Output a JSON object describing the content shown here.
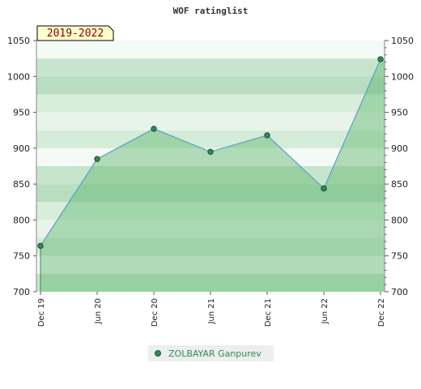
{
  "chart_data": {
    "type": "area",
    "title": "WOF ratinglist",
    "period_label": "2019-2022",
    "categories": [
      "Dec 19",
      "Jun 20",
      "Dec 20",
      "Jun 21",
      "Dec 21",
      "Jun 22",
      "Dec 22"
    ],
    "series": [
      {
        "name": "ZOLBAYAR Ganpurev",
        "values": [
          764,
          885,
          927,
          895,
          918,
          844,
          1024
        ]
      }
    ],
    "ylim": [
      700,
      1050
    ],
    "yticks": [
      700,
      750,
      800,
      850,
      900,
      950,
      1000,
      1050
    ],
    "grid": true,
    "legend": "bottom-center",
    "colors": {
      "line": "#5aa0c8",
      "point": "#2e8b57",
      "fill": "#5fb56f",
      "legend_text": "#2e8b57",
      "badge_bg": "#ffffcc",
      "badge_text": "#8b0000"
    }
  }
}
